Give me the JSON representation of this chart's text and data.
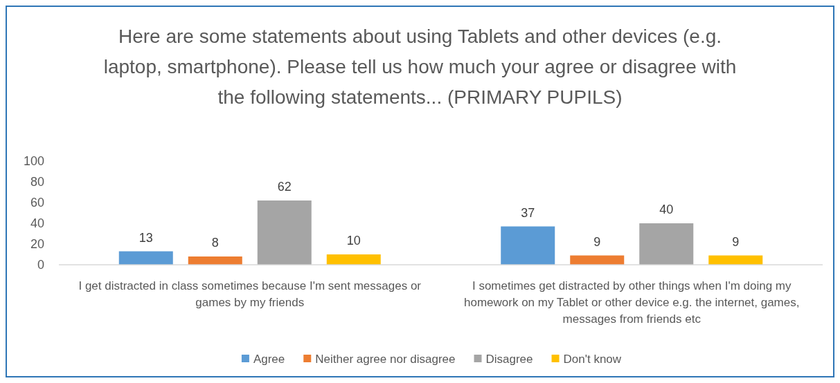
{
  "chart_data": {
    "type": "bar",
    "title": "Here are some statements about using Tablets and other devices (e.g. laptop, smartphone). Please tell us how much your agree or disagree with the following statements... (PRIMARY PUPILS)",
    "categories": [
      "I get distracted in class sometimes because I'm sent messages or games by my friends",
      "I sometimes get distracted by other things when I'm doing my homework on my Tablet or other device e.g. the internet, games, messages from friends etc"
    ],
    "series": [
      {
        "name": "Agree",
        "color": "#5b9bd5",
        "values": [
          13,
          37
        ]
      },
      {
        "name": "Neither agree nor disagree",
        "color": "#ed7d31",
        "values": [
          8,
          9
        ]
      },
      {
        "name": "Disagree",
        "color": "#a5a5a5",
        "values": [
          62,
          40
        ]
      },
      {
        "name": "Don't know",
        "color": "#ffc000",
        "values": [
          10,
          9
        ]
      }
    ],
    "ylim": [
      0,
      100
    ],
    "yticks": [
      0,
      20,
      40,
      60,
      80,
      100
    ],
    "grid": false,
    "legend": "bottom",
    "data_labels": true
  }
}
